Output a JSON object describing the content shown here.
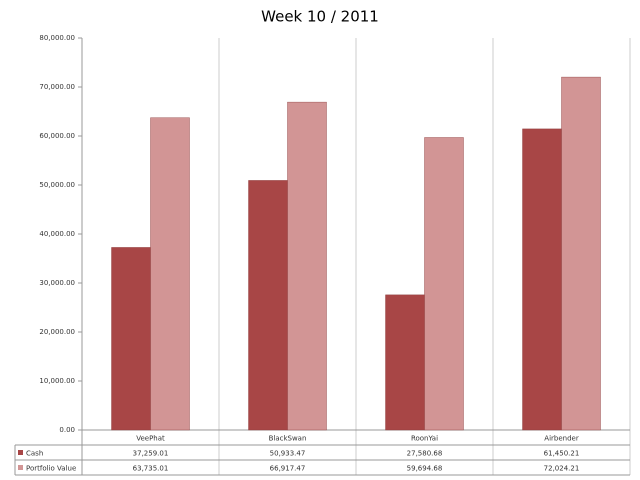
{
  "chart_data": {
    "type": "bar",
    "title": "Week 10 / 2011",
    "categories": [
      "VeePhat",
      "BlackSwan",
      "RoonYai",
      "Airbender"
    ],
    "series": [
      {
        "name": "Cash",
        "color": "#a84646",
        "values": [
          37259.01,
          50933.47,
          27580.68,
          61450.21
        ],
        "value_labels": [
          "37,259.01",
          "50,933.47",
          "27,580.68",
          "61,450.21"
        ]
      },
      {
        "name": "Portfolio Value",
        "color": "#d29595",
        "values": [
          63735.01,
          66917.47,
          59694.68,
          72024.21
        ],
        "value_labels": [
          "63,735.01",
          "66,917.47",
          "59,694.68",
          "72,024.21"
        ]
      }
    ],
    "ylim": [
      0,
      80000
    ],
    "yticks": [
      {
        "value": 0,
        "label": "0.00"
      },
      {
        "value": 10000,
        "label": "10,000.00"
      },
      {
        "value": 20000,
        "label": "20,000.00"
      },
      {
        "value": 30000,
        "label": "30,000.00"
      },
      {
        "value": 40000,
        "label": "40,000.00"
      },
      {
        "value": 50000,
        "label": "50,000.00"
      },
      {
        "value": 60000,
        "label": "60,000.00"
      },
      {
        "value": 70000,
        "label": "70,000.00"
      },
      {
        "value": 80000,
        "label": "80,000.00"
      }
    ],
    "grid": false
  }
}
